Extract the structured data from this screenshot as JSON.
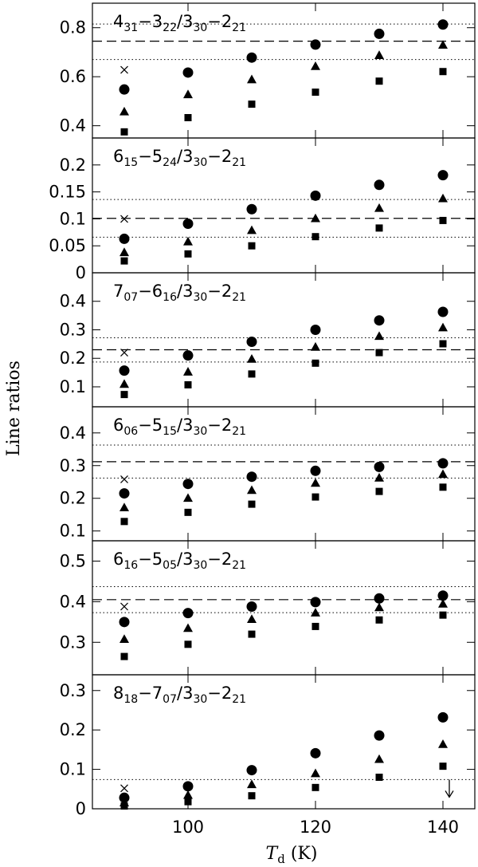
{
  "chart_data": {
    "type": "scatter",
    "xlabel_main": "T",
    "xlabel_sub": "d",
    "xlabel_unit": "(K)",
    "ylabel": "Line ratios",
    "xlim": [
      85,
      145
    ],
    "x_ticks": [
      {
        "value": 100,
        "label": "100"
      },
      {
        "value": 120,
        "label": "120"
      },
      {
        "value": 140,
        "label": "140"
      }
    ],
    "panels": [
      {
        "title_parts": [
          {
            "t": "4",
            "sub": false
          },
          {
            "t": "31",
            "sub": true
          },
          {
            "t": "−3",
            "sub": false
          },
          {
            "t": "22",
            "sub": true
          },
          {
            "t": "/3",
            "sub": false
          },
          {
            "t": "30",
            "sub": true
          },
          {
            "t": "−2",
            "sub": false
          },
          {
            "t": "21",
            "sub": true
          }
        ],
        "ylim": [
          0.35,
          0.9
        ],
        "y_ticks": [
          {
            "value": 0.4,
            "label": "0.4"
          },
          {
            "value": 0.6,
            "label": "0.6"
          },
          {
            "value": 0.8,
            "label": "0.8"
          }
        ],
        "observed": 0.745,
        "observed_range": [
          0.67,
          0.815
        ],
        "cross": {
          "x": 90,
          "y": 0.628
        },
        "circles": [
          [
            90,
            0.548
          ],
          [
            100,
            0.617
          ],
          [
            110,
            0.678
          ],
          [
            120,
            0.731
          ],
          [
            130,
            0.775
          ],
          [
            140,
            0.813
          ]
        ],
        "triangles": [
          [
            90,
            0.458
          ],
          [
            100,
            0.528
          ],
          [
            110,
            0.589
          ],
          [
            120,
            0.643
          ],
          [
            130,
            0.688
          ],
          [
            140,
            0.73
          ]
        ],
        "squares": [
          [
            90,
            0.375
          ],
          [
            100,
            0.433
          ],
          [
            110,
            0.488
          ],
          [
            120,
            0.537
          ],
          [
            130,
            0.582
          ],
          [
            140,
            0.621
          ]
        ],
        "upper_limit": null
      },
      {
        "title_parts": [
          {
            "t": "6",
            "sub": false
          },
          {
            "t": "15",
            "sub": true
          },
          {
            "t": "−5",
            "sub": false
          },
          {
            "t": "24",
            "sub": true
          },
          {
            "t": "/3",
            "sub": false
          },
          {
            "t": "30",
            "sub": true
          },
          {
            "t": "−2",
            "sub": false
          },
          {
            "t": "21",
            "sub": true
          }
        ],
        "ylim": [
          0,
          0.25
        ],
        "y_ticks": [
          {
            "value": 0,
            "label": "0"
          },
          {
            "value": 0.05,
            "label": "0.05"
          },
          {
            "value": 0.1,
            "label": "0.1"
          },
          {
            "value": 0.15,
            "label": "0.15"
          },
          {
            "value": 0.2,
            "label": "0.2"
          }
        ],
        "observed": 0.101,
        "observed_range": [
          0.066,
          0.136
        ],
        "cross": {
          "x": 90,
          "y": 0.1
        },
        "circles": [
          [
            90,
            0.063
          ],
          [
            100,
            0.091
          ],
          [
            110,
            0.118
          ],
          [
            120,
            0.143
          ],
          [
            130,
            0.163
          ],
          [
            140,
            0.181
          ]
        ],
        "triangles": [
          [
            90,
            0.038
          ],
          [
            100,
            0.058
          ],
          [
            110,
            0.079
          ],
          [
            120,
            0.101
          ],
          [
            130,
            0.12
          ],
          [
            140,
            0.138
          ]
        ],
        "squares": [
          [
            90,
            0.022
          ],
          [
            100,
            0.035
          ],
          [
            110,
            0.05
          ],
          [
            120,
            0.067
          ],
          [
            130,
            0.083
          ],
          [
            140,
            0.097
          ]
        ],
        "upper_limit": null
      },
      {
        "title_parts": [
          {
            "t": "7",
            "sub": false
          },
          {
            "t": "07",
            "sub": true
          },
          {
            "t": "−6",
            "sub": false
          },
          {
            "t": "16",
            "sub": true
          },
          {
            "t": "/3",
            "sub": false
          },
          {
            "t": "30",
            "sub": true
          },
          {
            "t": "−2",
            "sub": false
          },
          {
            "t": "21",
            "sub": true
          }
        ],
        "ylim": [
          0.03,
          0.5
        ],
        "y_ticks": [
          {
            "value": 0.1,
            "label": "0.1"
          },
          {
            "value": 0.2,
            "label": "0.2"
          },
          {
            "value": 0.3,
            "label": "0.3"
          },
          {
            "value": 0.4,
            "label": "0.4"
          }
        ],
        "observed": 0.23,
        "observed_range": [
          0.187,
          0.272
        ],
        "cross": {
          "x": 90,
          "y": 0.22
        },
        "circles": [
          [
            90,
            0.157
          ],
          [
            100,
            0.21
          ],
          [
            110,
            0.258
          ],
          [
            120,
            0.3
          ],
          [
            130,
            0.333
          ],
          [
            140,
            0.363
          ]
        ],
        "triangles": [
          [
            90,
            0.11
          ],
          [
            100,
            0.153
          ],
          [
            110,
            0.198
          ],
          [
            120,
            0.24
          ],
          [
            130,
            0.278
          ],
          [
            140,
            0.308
          ]
        ],
        "squares": [
          [
            90,
            0.073
          ],
          [
            100,
            0.107
          ],
          [
            110,
            0.145
          ],
          [
            120,
            0.183
          ],
          [
            130,
            0.22
          ],
          [
            140,
            0.251
          ]
        ],
        "upper_limit": null
      },
      {
        "title_parts": [
          {
            "t": "6",
            "sub": false
          },
          {
            "t": "06",
            "sub": true
          },
          {
            "t": "−5",
            "sub": false
          },
          {
            "t": "15",
            "sub": true
          },
          {
            "t": "/3",
            "sub": false
          },
          {
            "t": "30",
            "sub": true
          },
          {
            "t": "−2",
            "sub": false
          },
          {
            "t": "21",
            "sub": true
          }
        ],
        "ylim": [
          0.07,
          0.48
        ],
        "y_ticks": [
          {
            "value": 0.1,
            "label": "0.1"
          },
          {
            "value": 0.2,
            "label": "0.2"
          },
          {
            "value": 0.3,
            "label": "0.3"
          },
          {
            "value": 0.4,
            "label": "0.4"
          }
        ],
        "observed": 0.312,
        "observed_range": [
          0.262,
          0.363
        ],
        "cross": {
          "x": 90,
          "y": 0.258
        },
        "circles": [
          [
            90,
            0.215
          ],
          [
            100,
            0.244
          ],
          [
            110,
            0.266
          ],
          [
            120,
            0.284
          ],
          [
            130,
            0.296
          ],
          [
            140,
            0.307
          ]
        ],
        "triangles": [
          [
            90,
            0.172
          ],
          [
            100,
            0.201
          ],
          [
            110,
            0.225
          ],
          [
            120,
            0.247
          ],
          [
            130,
            0.263
          ],
          [
            140,
            0.274
          ]
        ],
        "squares": [
          [
            90,
            0.129
          ],
          [
            100,
            0.157
          ],
          [
            110,
            0.182
          ],
          [
            120,
            0.204
          ],
          [
            130,
            0.221
          ],
          [
            140,
            0.234
          ]
        ],
        "upper_limit": null
      },
      {
        "title_parts": [
          {
            "t": "6",
            "sub": false
          },
          {
            "t": "16",
            "sub": true
          },
          {
            "t": "−5",
            "sub": false
          },
          {
            "t": "05",
            "sub": true
          },
          {
            "t": "/3",
            "sub": false
          },
          {
            "t": "30",
            "sub": true
          },
          {
            "t": "−2",
            "sub": false
          },
          {
            "t": "21",
            "sub": true
          }
        ],
        "ylim": [
          0.22,
          0.55
        ],
        "y_ticks": [
          {
            "value": 0.3,
            "label": "0.3"
          },
          {
            "value": 0.4,
            "label": "0.4"
          },
          {
            "value": 0.5,
            "label": "0.5"
          }
        ],
        "observed": 0.405,
        "observed_range": [
          0.373,
          0.437
        ],
        "cross": {
          "x": 90,
          "y": 0.388
        },
        "circles": [
          [
            90,
            0.35
          ],
          [
            100,
            0.372
          ],
          [
            110,
            0.388
          ],
          [
            120,
            0.399
          ],
          [
            130,
            0.408
          ],
          [
            140,
            0.415
          ]
        ],
        "triangles": [
          [
            90,
            0.308
          ],
          [
            100,
            0.335
          ],
          [
            110,
            0.357
          ],
          [
            120,
            0.373
          ],
          [
            130,
            0.386
          ],
          [
            140,
            0.395
          ]
        ],
        "squares": [
          [
            90,
            0.265
          ],
          [
            100,
            0.295
          ],
          [
            110,
            0.32
          ],
          [
            120,
            0.339
          ],
          [
            130,
            0.355
          ],
          [
            140,
            0.367
          ]
        ],
        "upper_limit": null
      },
      {
        "title_parts": [
          {
            "t": "8",
            "sub": false
          },
          {
            "t": "18",
            "sub": true
          },
          {
            "t": "−7",
            "sub": false
          },
          {
            "t": "07",
            "sub": true
          },
          {
            "t": "/3",
            "sub": false
          },
          {
            "t": "30",
            "sub": true
          },
          {
            "t": "−2",
            "sub": false
          },
          {
            "t": "21",
            "sub": true
          }
        ],
        "ylim": [
          0,
          0.34
        ],
        "y_ticks": [
          {
            "value": 0,
            "label": "0"
          },
          {
            "value": 0.1,
            "label": "0.1"
          },
          {
            "value": 0.2,
            "label": "0.2"
          },
          {
            "value": 0.3,
            "label": "0.3"
          }
        ],
        "observed": null,
        "observed_range": [
          0.074,
          0.074
        ],
        "cross": {
          "x": 90,
          "y": 0.052
        },
        "circles": [
          [
            90,
            0.028
          ],
          [
            100,
            0.057
          ],
          [
            110,
            0.098
          ],
          [
            120,
            0.141
          ],
          [
            130,
            0.186
          ],
          [
            140,
            0.232
          ]
        ],
        "triangles": [
          [
            90,
            0.016
          ],
          [
            100,
            0.035
          ],
          [
            110,
            0.062
          ],
          [
            120,
            0.09
          ],
          [
            130,
            0.126
          ],
          [
            140,
            0.164
          ]
        ],
        "squares": [
          [
            90,
            0.007
          ],
          [
            100,
            0.018
          ],
          [
            110,
            0.033
          ],
          [
            120,
            0.054
          ],
          [
            130,
            0.08
          ],
          [
            140,
            0.108
          ]
        ],
        "upper_limit": {
          "x": 141,
          "y": 0.074
        }
      }
    ]
  }
}
